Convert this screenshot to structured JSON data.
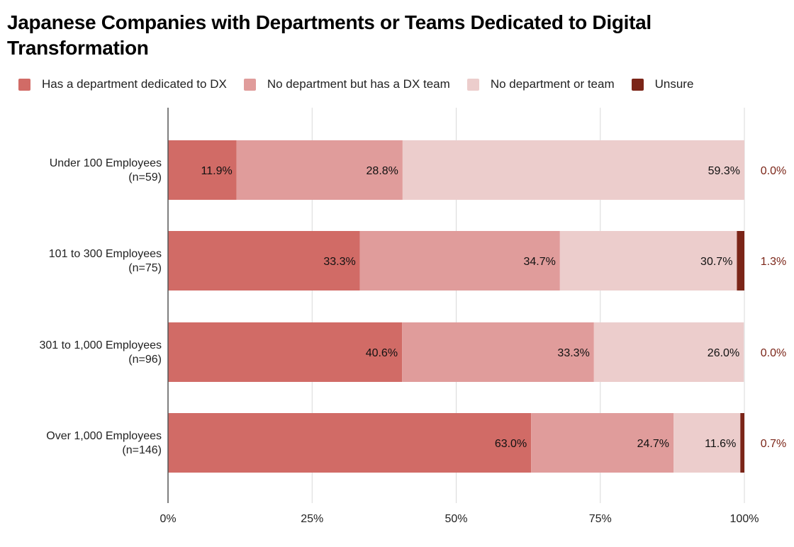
{
  "chart_data": {
    "type": "bar",
    "orientation": "horizontal",
    "stacked": "percent",
    "title": "Japanese Companies with Departments or Teams Dedicated to Digital Transformation",
    "categories": [
      {
        "line1": "Under 100 Employees",
        "line2": "(n=59)"
      },
      {
        "line1": "101 to 300 Employees",
        "line2": "(n=75)"
      },
      {
        "line1": "301 to 1,000 Employees",
        "line2": "(n=96)"
      },
      {
        "line1": "Over 1,000 Employees",
        "line2": "(n=146)"
      }
    ],
    "series": [
      {
        "name": "Has a department dedicated to DX",
        "color": "#d16b66",
        "values": [
          11.9,
          33.3,
          40.6,
          63.0
        ],
        "labels": [
          "11.9%",
          "33.3%",
          "40.6%",
          "63.0%"
        ]
      },
      {
        "name": "No department but has a DX team",
        "color": "#e09c9b",
        "values": [
          28.8,
          34.7,
          33.3,
          24.7
        ],
        "labels": [
          "28.8%",
          "34.7%",
          "33.3%",
          "24.7%"
        ]
      },
      {
        "name": "No department or team",
        "color": "#eccdcc",
        "values": [
          59.3,
          30.7,
          26.0,
          11.6
        ],
        "labels": [
          "59.3%",
          "30.7%",
          "26.0%",
          "11.6%"
        ]
      },
      {
        "name": "Unsure",
        "color": "#7b2518",
        "values": [
          0.0,
          1.3,
          0.0,
          0.7
        ],
        "labels": [
          "0.0%",
          "1.3%",
          "0.0%",
          "0.7%"
        ]
      }
    ],
    "xticks": [
      "0%",
      "25%",
      "50%",
      "75%",
      "100%"
    ],
    "xlim": [
      0,
      100
    ],
    "grid": true,
    "legend_position": "top"
  }
}
